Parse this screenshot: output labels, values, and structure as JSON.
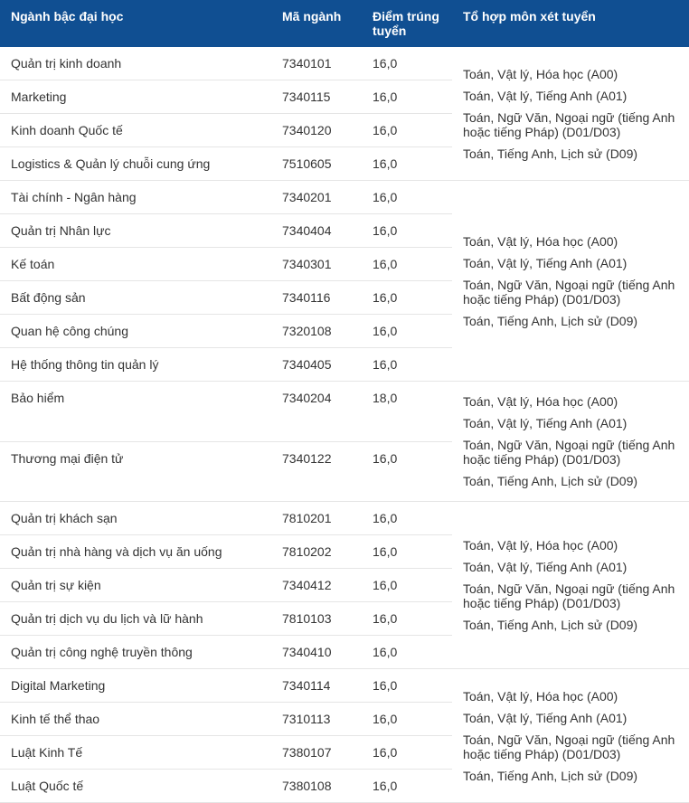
{
  "header_bg": "#104f92",
  "header_color": "#ffffff",
  "columns": [
    "Ngành bậc đại học",
    "Mã ngành",
    "Điểm trúng tuyển",
    "Tổ hợp môn xét tuyển"
  ],
  "combo_a": [
    "Toán, Vật lý, Hóa học (A00)",
    "Toán, Vật lý, Tiếng Anh (A01)",
    "Toán, Ngữ Văn, Ngoại ngữ (tiếng Anh hoặc tiếng Pháp) (D01/D03)",
    "Toán, Tiếng Anh, Lịch sử (D09)"
  ],
  "rows": [
    {
      "name": "Quản trị kinh doanh",
      "code": "7340101",
      "score": "16,0",
      "combo_start": true,
      "combo_span": 4
    },
    {
      "name": "Marketing",
      "code": "7340115",
      "score": "16,0"
    },
    {
      "name": "Kinh doanh Quốc tế",
      "code": "7340120",
      "score": "16,0"
    },
    {
      "name": "Logistics & Quản lý chuỗi cung ứng",
      "code": "7510605",
      "score": "16,0"
    },
    {
      "name": "Tài chính - Ngân hàng",
      "code": "7340201",
      "score": "16,0",
      "combo_start": true,
      "combo_span": 6
    },
    {
      "name": "Quản trị Nhân lực",
      "code": "7340404",
      "score": "16,0"
    },
    {
      "name": "Kế toán",
      "code": "7340301",
      "score": "16,0"
    },
    {
      "name": "Bất động sản",
      "code": "7340116",
      "score": "16,0"
    },
    {
      "name": "Quan hệ công chúng",
      "code": "7320108",
      "score": "16,0"
    },
    {
      "name": "Hệ thống thông tin quản lý",
      "code": "7340405",
      "score": "16,0"
    },
    {
      "name": "Bảo hiểm",
      "code": "7340204",
      "score": "18,0",
      "combo_start": true,
      "combo_span": 2
    },
    {
      "name": "Thương mại điện tử",
      "code": "7340122",
      "score": "16,0"
    },
    {
      "name": "Quản trị khách sạn",
      "code": "7810201",
      "score": "16,0",
      "combo_start": true,
      "combo_span": 5
    },
    {
      "name": "Quản trị nhà hàng và dịch vụ ăn uống",
      "code": "7810202",
      "score": "16,0"
    },
    {
      "name": "Quản trị sự kiện",
      "code": "7340412",
      "score": "16,0"
    },
    {
      "name": "Quản trị dịch vụ du lịch và lữ hành",
      "code": "7810103",
      "score": "16,0"
    },
    {
      "name": "Quản trị công nghệ truyền thông",
      "code": "7340410",
      "score": "16,0"
    },
    {
      "name": "Digital Marketing",
      "code": "7340114",
      "score": "16,0",
      "combo_start": true,
      "combo_span": 4
    },
    {
      "name": "Kinh tế thể thao",
      "code": "7310113",
      "score": "16,0"
    },
    {
      "name": "Luật Kinh Tế",
      "code": "7380107",
      "score": "16,0"
    },
    {
      "name": "Luật Quốc tế",
      "code": "7380108",
      "score": "16,0"
    }
  ]
}
